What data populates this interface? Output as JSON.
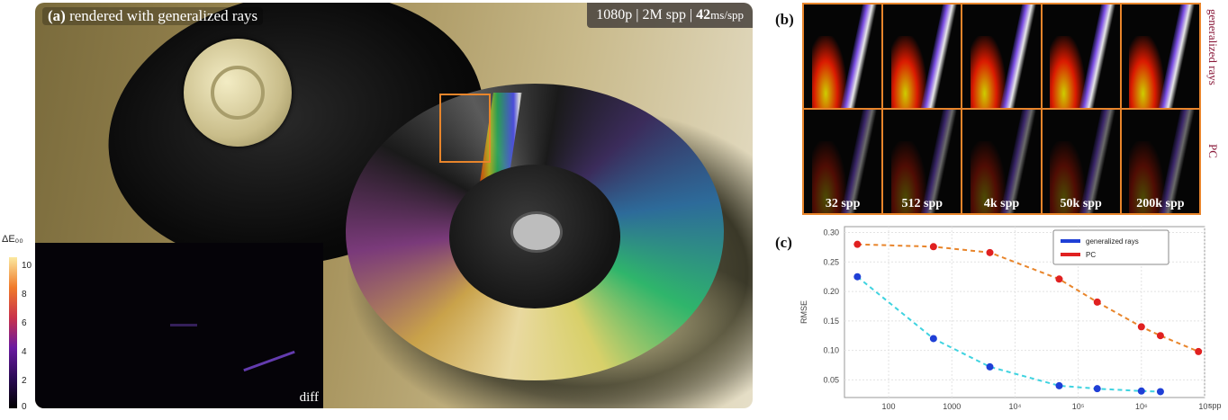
{
  "panel_a": {
    "letter": "(a)",
    "title": "rendered with generalized rays",
    "render_info": {
      "resolution": "1080p",
      "spp": "2M spp",
      "time_value": "42",
      "time_unit": "ms/spp"
    },
    "diff_label": "diff",
    "colorbar": {
      "title": "ΔE₀₀",
      "ticks": [
        "10",
        "8",
        "6",
        "4",
        "2",
        "0"
      ]
    }
  },
  "panel_b": {
    "letter": "(b)",
    "row_labels": [
      "generalized rays",
      "PC"
    ],
    "spp_labels": [
      "32 spp",
      "512 spp",
      "4k spp",
      "50k spp",
      "200k spp"
    ],
    "accent_color": "#e8852b"
  },
  "panel_c": {
    "letter": "(c)"
  },
  "chart_data": {
    "type": "scatter",
    "ylabel": "RMSE",
    "xlabel": "spp",
    "x_scale": "log",
    "xlim": [
      20,
      10000000
    ],
    "ylim": [
      0.02,
      0.31
    ],
    "x_ticks": [
      100,
      1000,
      10000,
      100000,
      1000000,
      10000000
    ],
    "x_tick_labels": [
      "100",
      "1000",
      "10⁴",
      "10⁵",
      "10⁶",
      "10⁷"
    ],
    "y_ticks": [
      0.05,
      0.1,
      0.15,
      0.2,
      0.25,
      0.3
    ],
    "y_tick_labels": [
      "0.05",
      "0.10",
      "0.15",
      "0.20",
      "0.25",
      "0.30"
    ],
    "grid": true,
    "legend_position": "top-right",
    "series": [
      {
        "name": "generalized rays",
        "color": "#1f3fd6",
        "line_color": "#3fd3e0",
        "x": [
          32,
          512,
          4000,
          50000,
          200000,
          1000000,
          2000000
        ],
        "y": [
          0.225,
          0.12,
          0.072,
          0.04,
          0.035,
          0.031,
          0.03
        ]
      },
      {
        "name": "PC",
        "color": "#e02020",
        "line_color": "#e8852b",
        "x": [
          32,
          512,
          4000,
          50000,
          200000,
          1000000,
          2000000,
          8000000
        ],
        "y": [
          0.28,
          0.276,
          0.266,
          0.221,
          0.182,
          0.14,
          0.125,
          0.098
        ]
      }
    ]
  }
}
